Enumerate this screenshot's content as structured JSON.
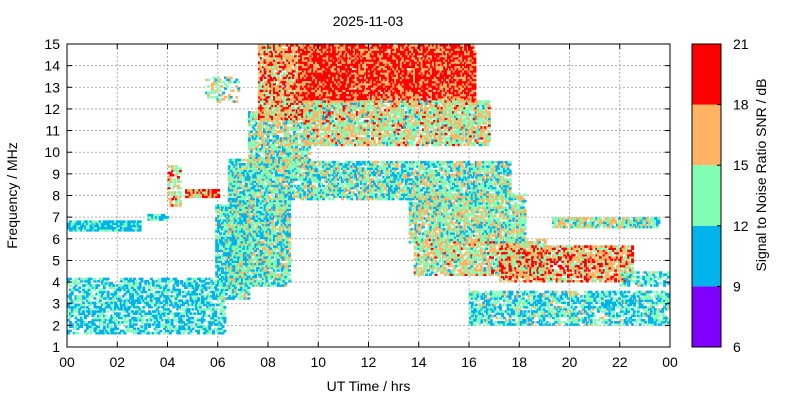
{
  "chart_data": {
    "type": "heatmap",
    "title": "2025-11-03",
    "xlabel": "UT Time / hrs",
    "ylabel": "Frequency / MHz",
    "xlim": [
      0,
      24
    ],
    "ylim": [
      1,
      15
    ],
    "x_ticks": [
      "00",
      "02",
      "04",
      "06",
      "08",
      "10",
      "12",
      "14",
      "16",
      "18",
      "20",
      "22",
      "00"
    ],
    "y_ticks": [
      "1",
      "2",
      "3",
      "4",
      "5",
      "6",
      "7",
      "8",
      "9",
      "10",
      "11",
      "12",
      "13",
      "14",
      "15"
    ],
    "grid": true,
    "colorbar": {
      "label": "Signal to Noise Ratio SNR / dB",
      "ticks": [
        "6",
        "9",
        "12",
        "15",
        "18",
        "21"
      ],
      "bands": [
        {
          "from": 6,
          "to": 9,
          "color": "#8000ff"
        },
        {
          "from": 9,
          "to": 12,
          "color": "#00b4eb"
        },
        {
          "from": 12,
          "to": 15,
          "color": "#80ffb4"
        },
        {
          "from": 15,
          "to": 18,
          "color": "#ffb464"
        },
        {
          "from": 18,
          "to": 21,
          "color": "#ff0000"
        }
      ]
    },
    "regions": [
      {
        "t": [
          0.0,
          2.9
        ],
        "f": [
          6.35,
          6.75
        ],
        "snr": 11,
        "density": 0.9
      },
      {
        "t": [
          3.2,
          4.0
        ],
        "f": [
          6.85,
          7.05
        ],
        "snr": 11,
        "density": 0.8
      },
      {
        "t": [
          0.0,
          6.3
        ],
        "f": [
          1.6,
          4.2
        ],
        "snr": 11,
        "density": 0.55
      },
      {
        "t": [
          4.0,
          4.5
        ],
        "f": [
          7.5,
          9.3
        ],
        "snr": 16,
        "density": 0.55
      },
      {
        "t": [
          4.7,
          6.0
        ],
        "f": [
          7.9,
          8.25
        ],
        "snr": 17,
        "density": 0.9
      },
      {
        "t": [
          5.5,
          6.8
        ],
        "f": [
          12.3,
          13.4
        ],
        "snr": 14,
        "density": 0.35
      },
      {
        "t": [
          5.9,
          7.2
        ],
        "f": [
          3.2,
          7.5
        ],
        "snr": 12,
        "density": 0.7
      },
      {
        "t": [
          6.4,
          8.8
        ],
        "f": [
          3.8,
          9.6
        ],
        "snr": 13,
        "density": 0.8
      },
      {
        "t": [
          7.2,
          9.6
        ],
        "f": [
          9.3,
          11.8
        ],
        "snr": 14,
        "density": 0.7
      },
      {
        "t": [
          7.6,
          10.4
        ],
        "f": [
          11.5,
          15.0
        ],
        "snr": 17,
        "density": 0.8
      },
      {
        "t": [
          9.2,
          16.2
        ],
        "f": [
          12.3,
          15.0
        ],
        "snr": 19,
        "density": 0.9
      },
      {
        "t": [
          9.4,
          16.8
        ],
        "f": [
          10.3,
          12.3
        ],
        "snr": 15,
        "density": 0.75
      },
      {
        "t": [
          8.8,
          17.6
        ],
        "f": [
          7.8,
          9.5
        ],
        "snr": 13,
        "density": 0.7
      },
      {
        "t": [
          13.6,
          18.2
        ],
        "f": [
          5.8,
          8.0
        ],
        "snr": 14,
        "density": 0.75
      },
      {
        "t": [
          13.8,
          19.0
        ],
        "f": [
          4.3,
          5.9
        ],
        "snr": 15,
        "density": 0.7
      },
      {
        "t": [
          17.2,
          22.5
        ],
        "f": [
          4.0,
          5.6
        ],
        "snr": 17,
        "density": 0.7
      },
      {
        "t": [
          16.0,
          24.0
        ],
        "f": [
          2.0,
          3.6
        ],
        "snr": 12,
        "density": 0.55
      },
      {
        "t": [
          19.3,
          23.5
        ],
        "f": [
          6.5,
          6.9
        ],
        "snr": 14,
        "density": 0.8
      },
      {
        "t": [
          22.0,
          24.0
        ],
        "f": [
          3.8,
          4.4
        ],
        "snr": 12,
        "density": 0.5
      }
    ]
  }
}
